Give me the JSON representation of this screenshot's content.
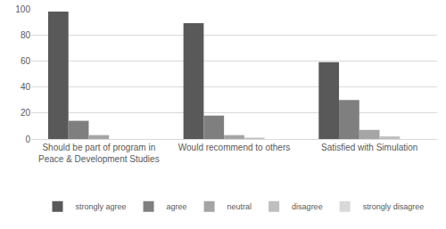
{
  "chart_data": {
    "type": "bar",
    "categories": [
      "Should be part of program in Peace & Development Studies",
      "Would recommend to others",
      "Satisfied with Simulation"
    ],
    "series": [
      {
        "name": "strongly agree",
        "color": "#595959",
        "values": [
          98,
          89,
          59
        ]
      },
      {
        "name": "agree",
        "color": "#7f7f7f",
        "values": [
          14,
          18,
          30
        ]
      },
      {
        "name": "neutral",
        "color": "#a5a5a5",
        "values": [
          3,
          3,
          7
        ]
      },
      {
        "name": "disagree",
        "color": "#bfbfbf",
        "values": [
          0,
          1,
          2
        ]
      },
      {
        "name": "strongly disagree",
        "color": "#d9d9d9",
        "values": [
          0,
          0,
          0
        ]
      }
    ],
    "ylim": [
      0,
      100
    ],
    "yticks": [
      0,
      20,
      40,
      60,
      80,
      100
    ],
    "grid": true,
    "legend": "bottom"
  }
}
